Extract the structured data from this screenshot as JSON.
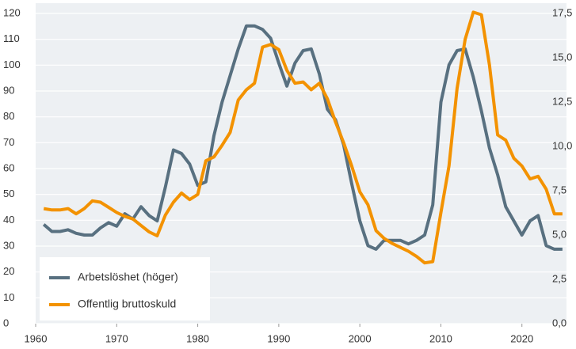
{
  "chart_data": {
    "type": "line",
    "x": [
      1961,
      1962,
      1963,
      1964,
      1965,
      1966,
      1967,
      1968,
      1969,
      1970,
      1971,
      1972,
      1973,
      1974,
      1975,
      1976,
      1977,
      1978,
      1979,
      1980,
      1981,
      1982,
      1983,
      1984,
      1985,
      1986,
      1987,
      1988,
      1989,
      1990,
      1991,
      1992,
      1993,
      1994,
      1995,
      1996,
      1997,
      1998,
      1999,
      2000,
      2001,
      2002,
      2003,
      2004,
      2005,
      2006,
      2007,
      2008,
      2009,
      2010,
      2011,
      2012,
      2013,
      2014,
      2015,
      2016,
      2017,
      2018,
      2019,
      2020,
      2021,
      2022,
      2023,
      2024,
      2025
    ],
    "series": [
      {
        "name": "Arbetslöshet (höger)",
        "color": "#587080",
        "axis": "y2",
        "values": [
          5.6,
          5.2,
          5.2,
          5.3,
          5.1,
          5.0,
          5.0,
          5.4,
          5.7,
          5.5,
          6.2,
          5.9,
          6.6,
          6.1,
          5.8,
          7.7,
          9.8,
          9.6,
          9.0,
          7.8,
          8.0,
          10.6,
          12.5,
          14.0,
          15.5,
          16.8,
          16.8,
          16.6,
          16.1,
          14.7,
          13.4,
          14.7,
          15.4,
          15.5,
          14.1,
          12.1,
          11.5,
          10.1,
          7.9,
          5.8,
          4.4,
          4.2,
          4.7,
          4.7,
          4.7,
          4.5,
          4.7,
          5.0,
          6.7,
          12.5,
          14.6,
          15.4,
          15.5,
          13.9,
          12.0,
          9.9,
          8.4,
          6.6,
          5.8,
          5.0,
          5.8,
          6.1,
          4.4,
          4.2,
          4.2
        ]
      },
      {
        "name": "Offentlig bruttoskuld",
        "color": "#f39200",
        "values": [
          44.5,
          44,
          44,
          44.5,
          42.5,
          44.5,
          47.5,
          47,
          45,
          43,
          41.5,
          40.5,
          38,
          35.5,
          34,
          42,
          47,
          50.5,
          48,
          50,
          63,
          64.5,
          69,
          74,
          86.5,
          90.5,
          93,
          107,
          108,
          106,
          98,
          93,
          93.5,
          90.5,
          93,
          87,
          78,
          70,
          61,
          51,
          46,
          36,
          33,
          31,
          29.5,
          28,
          26,
          23.5,
          24,
          43,
          61,
          91,
          110,
          120.5,
          119.5,
          100,
          73,
          71,
          64,
          61,
          56,
          57,
          52,
          42.5,
          42.5
        ]
      }
    ],
    "xlim": [
      1960,
      2025.5
    ],
    "xticks": [
      1960,
      1970,
      1980,
      1990,
      2000,
      2010,
      2020
    ],
    "ylim": [
      0,
      120
    ],
    "yticks": [
      0,
      10,
      20,
      30,
      40,
      50,
      60,
      70,
      80,
      90,
      100,
      110,
      120
    ],
    "y2lim": [
      0,
      17.5
    ],
    "y2ticks": [
      {
        "value": 0,
        "label": "0,0"
      },
      {
        "value": 2.5,
        "label": "2,5"
      },
      {
        "value": 5,
        "label": "5,0"
      },
      {
        "value": 7.5,
        "label": "7,5"
      },
      {
        "value": 10,
        "label": "10,0"
      },
      {
        "value": 12.5,
        "label": "12,5"
      },
      {
        "value": 15,
        "label": "15,0"
      },
      {
        "value": 17.5,
        "label": "17,5"
      }
    ],
    "grid": true,
    "legend": "lower-left"
  }
}
